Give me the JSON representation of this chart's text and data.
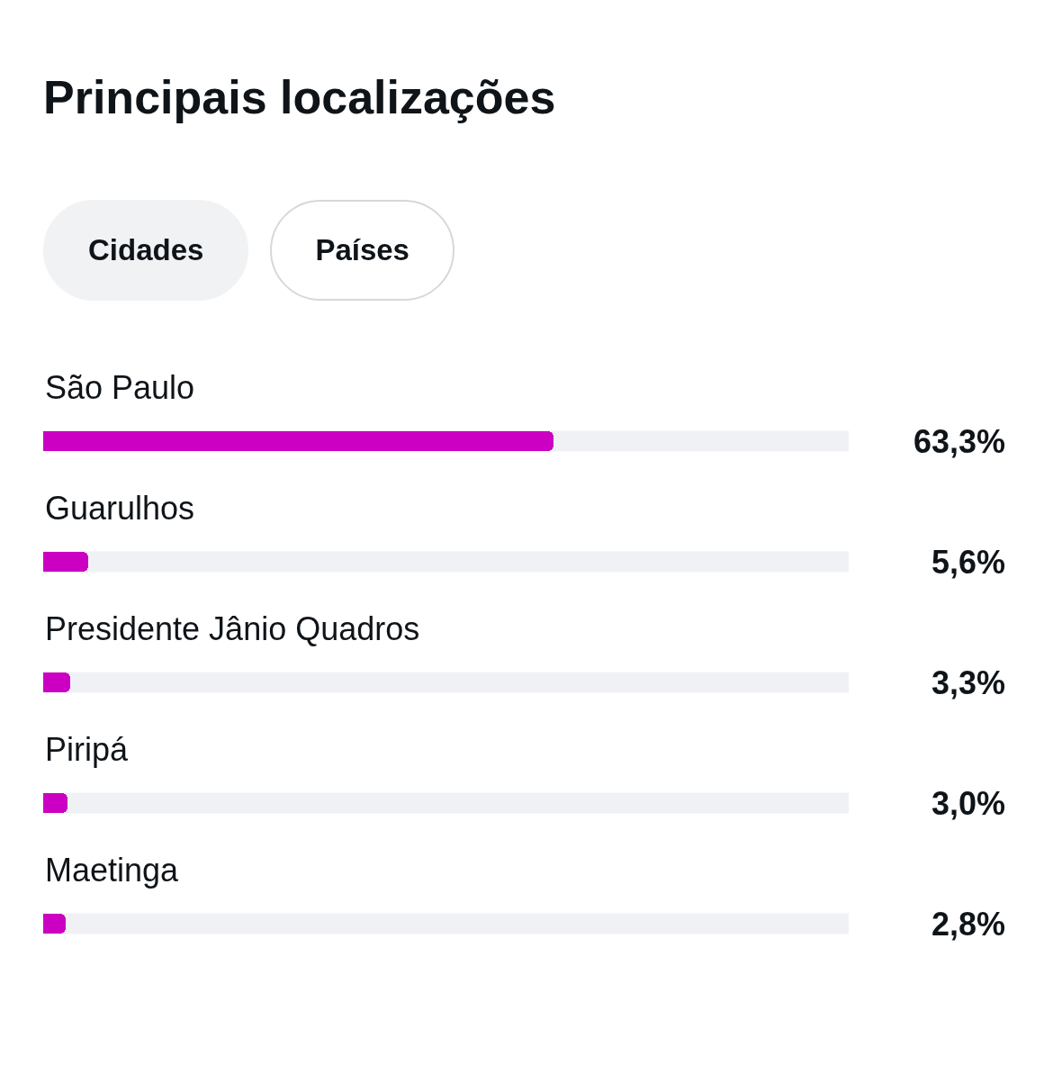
{
  "chart_data": {
    "type": "bar",
    "orientation": "horizontal",
    "title": "Principais localizações",
    "annotations": [
      "Cidades",
      "Países"
    ],
    "categories": [
      "São Paulo",
      "Guarulhos",
      "Presidente Jânio Quadros",
      "Piripá",
      "Maetinga"
    ],
    "values": [
      63.3,
      5.6,
      3.3,
      3.0,
      2.8
    ],
    "value_labels": [
      "63,3%",
      "5,6%",
      "3,3%",
      "3,0%",
      "2,8%"
    ],
    "color": "#cc00c2",
    "xlim": [
      0,
      100
    ],
    "tick_labels": "y"
  }
}
